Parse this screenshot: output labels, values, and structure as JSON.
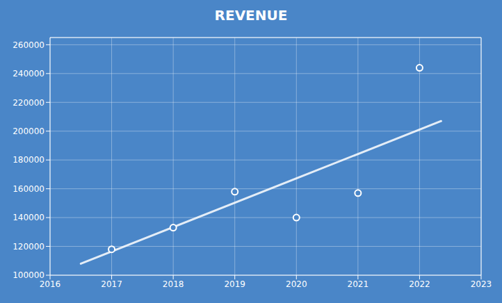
{
  "chart_data": {
    "type": "scatter",
    "title": "REVENUE",
    "x": [
      2017,
      2018,
      2019,
      2020,
      2021,
      2022
    ],
    "values": [
      118000,
      133000,
      158000,
      140000,
      157000,
      244000
    ],
    "color": "#FFFFFF",
    "marker": "open_circle",
    "trendline": {
      "x": [
        2016.5,
        2022.35
      ],
      "y": [
        108000,
        207000
      ],
      "color": "#FFFFFF"
    },
    "xlim": [
      2016,
      2023
    ],
    "ylim": [
      100000,
      265000
    ],
    "xticks": [
      2016,
      2017,
      2018,
      2019,
      2020,
      2021,
      2022,
      2023
    ],
    "yticks": [
      100000,
      120000,
      140000,
      160000,
      180000,
      200000,
      220000,
      240000,
      260000
    ],
    "grid": true
  }
}
